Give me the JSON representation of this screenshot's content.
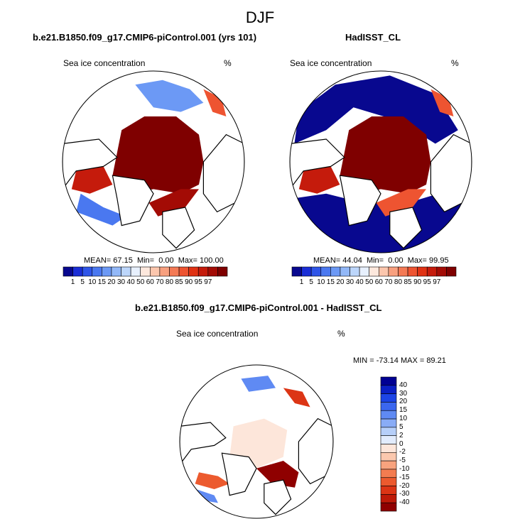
{
  "main_title": "DJF",
  "colors": {
    "sea_ice_palette": [
      "#08088f",
      "#1a2ed6",
      "#2f55e8",
      "#4a78f0",
      "#6c99f5",
      "#92b8f8",
      "#bcd6fb",
      "#e7f0fd",
      "#fde8dd",
      "#fbc6ad",
      "#f8a07f",
      "#f47a55",
      "#ee5431",
      "#e03214",
      "#c51b0c",
      "#a30b05",
      "#7f0000"
    ],
    "diff_palette": [
      "#000093",
      "#0a1fc5",
      "#1c44e6",
      "#3b67ef",
      "#5f8af3",
      "#89acf6",
      "#b6cff9",
      "#e2ecfd",
      "#fde6da",
      "#fbc8ae",
      "#f8a37e",
      "#f37c50",
      "#ec5a2e",
      "#dc3515",
      "#be1a08",
      "#8f0000"
    ],
    "land": "#ffffff",
    "coastline": "#000000"
  },
  "panels": [
    {
      "title": "b.e21.B1850.f09_g17.CMIP6-piControl.001 (yrs 101)",
      "variable_label": "Sea ice concentration",
      "units": "%",
      "stats": {
        "mean_label": "MEAN=",
        "mean": "67.15",
        "min_label": "Min=",
        "min": "0.00",
        "max_label": "Max=",
        "max": "100.00"
      }
    },
    {
      "title": "HadISST_CL",
      "variable_label": "Sea ice concentration",
      "units": "%",
      "stats": {
        "mean_label": "MEAN=",
        "mean": "44.04",
        "min_label": "Min=",
        "min": "0.00",
        "max_label": "Max=",
        "max": "99.95"
      }
    },
    {
      "title": "b.e21.B1850.f09_g17.CMIP6-piControl.001 - HadISST_CL",
      "variable_label": "Sea ice concentration",
      "units": "%",
      "stats_line": "MIN = -73.14 MAX =  89.21"
    }
  ],
  "colorbar_levels": [
    "1",
    "5",
    "10",
    "15",
    "20",
    "30",
    "40",
    "50",
    "60",
    "70",
    "80",
    "85",
    "90",
    "95",
    "97"
  ],
  "diff_colorbar_levels": [
    "40",
    "30",
    "20",
    "15",
    "10",
    "5",
    "2",
    "0",
    "-2",
    "-5",
    "-10",
    "-15",
    "-20",
    "-30",
    "-40"
  ]
}
